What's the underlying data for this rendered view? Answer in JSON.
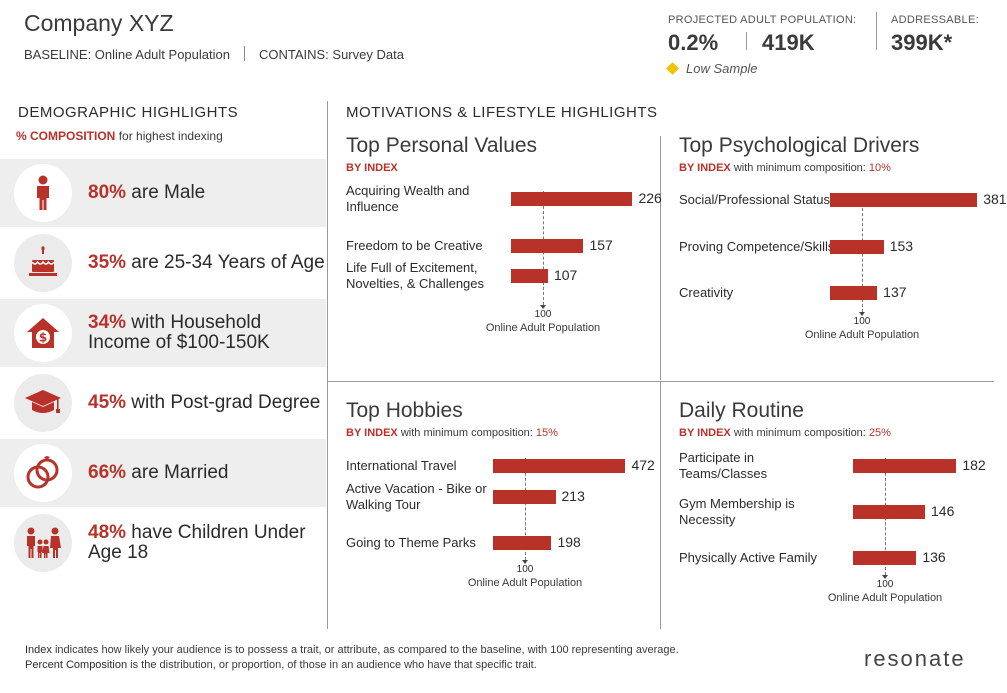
{
  "header": {
    "company": "Company XYZ",
    "baseline": "BASELINE: Online Adult Population",
    "contains": "CONTAINS: Survey Data",
    "projected_label": "PROJECTED ADULT POPULATION:",
    "projected_pct": "0.2%",
    "projected_count": "419K",
    "addressable_label": "ADDRESSABLE:",
    "addressable_value": "399K*",
    "low_sample": "Low Sample",
    "low_sample_color": "#f5c000"
  },
  "demographics": {
    "title": "DEMOGRAPHIC HIGHLIGHTS",
    "sub_accent": "% COMPOSITION",
    "sub_rest": "for highest indexing",
    "rows": [
      {
        "pct": "80%",
        "text": " are Male",
        "icon": "male-icon"
      },
      {
        "pct": "35%",
        "text": " are 25-34 Years of Age",
        "icon": "cake-icon"
      },
      {
        "pct": "34%",
        "text": " with Household Income of $100-150K",
        "icon": "house-dollar-icon"
      },
      {
        "pct": "45%",
        "text": " with Post-grad Degree",
        "icon": "graduation-cap-icon"
      },
      {
        "pct": "66%",
        "text": " are Married",
        "icon": "rings-icon"
      },
      {
        "pct": "48%",
        "text": " have Children Under Age 18",
        "icon": "family-icon"
      }
    ]
  },
  "motivations": {
    "title": "MOTIVATIONS & LIFESTYLE HIGHLIGHTS",
    "axis_value": "100",
    "axis_name": "Online Adult Population",
    "panels": [
      {
        "title": "Top Personal Values",
        "by_index": "BY INDEX",
        "min_text": "",
        "min_value": "",
        "items": [
          {
            "label": "Acquiring Wealth and Influence",
            "value": 226
          },
          {
            "label": "Freedom to be Creative",
            "value": 157
          },
          {
            "label": "Life Full of Excitement, Novelties, & Challenges",
            "value": 107
          }
        ]
      },
      {
        "title": "Top Psychological Drivers",
        "by_index": "BY INDEX",
        "min_text": " with minimum composition: ",
        "min_value": "10%",
        "items": [
          {
            "label": "Social/Professional Status",
            "value": 381
          },
          {
            "label": "Proving Competence/Skills",
            "value": 153
          },
          {
            "label": "Creativity",
            "value": 137
          }
        ]
      },
      {
        "title": "Top Hobbies",
        "by_index": "BY INDEX",
        "min_text": " with minimum composition: ",
        "min_value": "15%",
        "items": [
          {
            "label": "International Travel",
            "value": 472
          },
          {
            "label": "Active Vacation - Bike or Walking Tour",
            "value": 213
          },
          {
            "label": "Going to Theme Parks",
            "value": 198
          }
        ]
      },
      {
        "title": "Daily Routine",
        "by_index": "BY INDEX",
        "min_text": " with minimum composition: ",
        "min_value": "25%",
        "items": [
          {
            "label": "Participate in Teams/Classes",
            "value": 182
          },
          {
            "label": "Gym Membership is Necessity",
            "value": 146
          },
          {
            "label": "Physically Active Family",
            "value": 136
          }
        ]
      }
    ]
  },
  "footer": {
    "index_term": "Index",
    "index_def": " indicates how likely your audience is to possess a trait, or attribute, as compared to the baseline, with 100 representing average.",
    "pc_term": "Percent Composition",
    "pc_def": " is the distribution, or proportion, of those in an audience who have that specific trait.",
    "logo": "resonate"
  },
  "colors": {
    "accent": "#b8322a",
    "text": "#2b2b2b",
    "shade": "#eeeeee"
  }
}
